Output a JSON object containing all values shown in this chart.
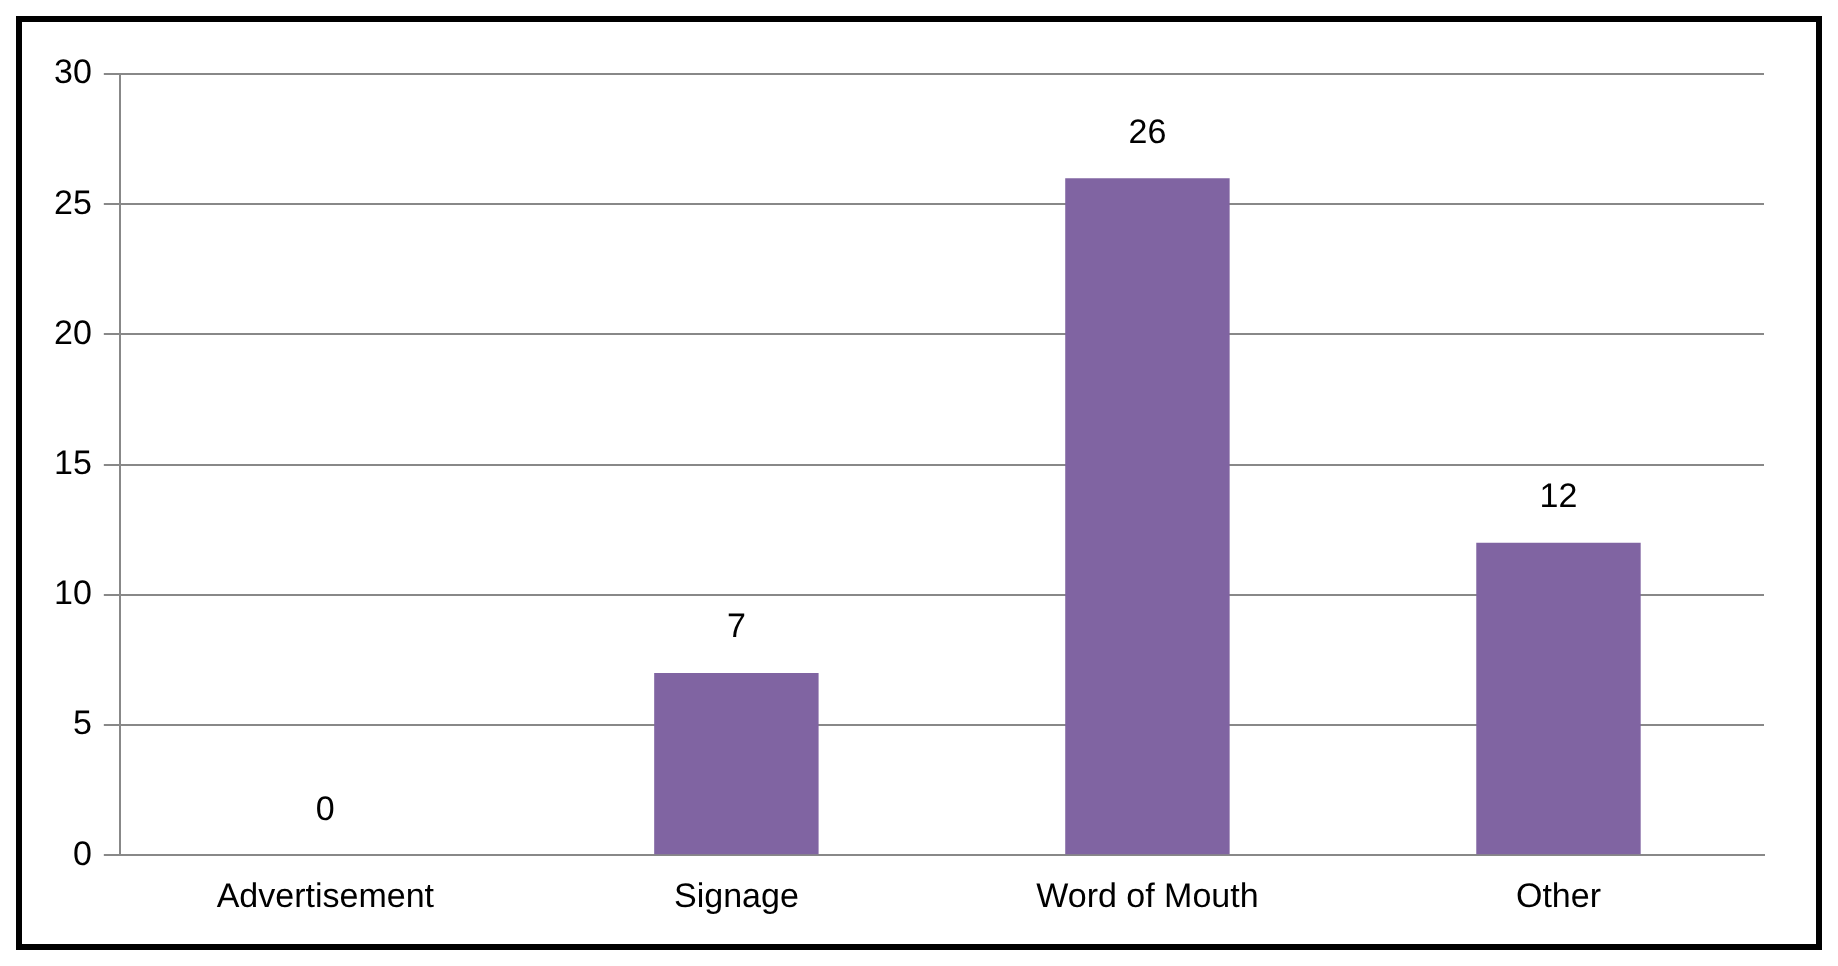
{
  "chart_data": {
    "type": "bar",
    "categories": [
      "Advertisement",
      "Signage",
      "Word of Mouth",
      "Other"
    ],
    "values": [
      0,
      7,
      26,
      12
    ],
    "color": "#8064a2",
    "ylim": [
      0,
      30
    ],
    "yticks": [
      0,
      5,
      10,
      15,
      20,
      25,
      30
    ],
    "grid": "y",
    "data_labels": true,
    "legend": false
  }
}
